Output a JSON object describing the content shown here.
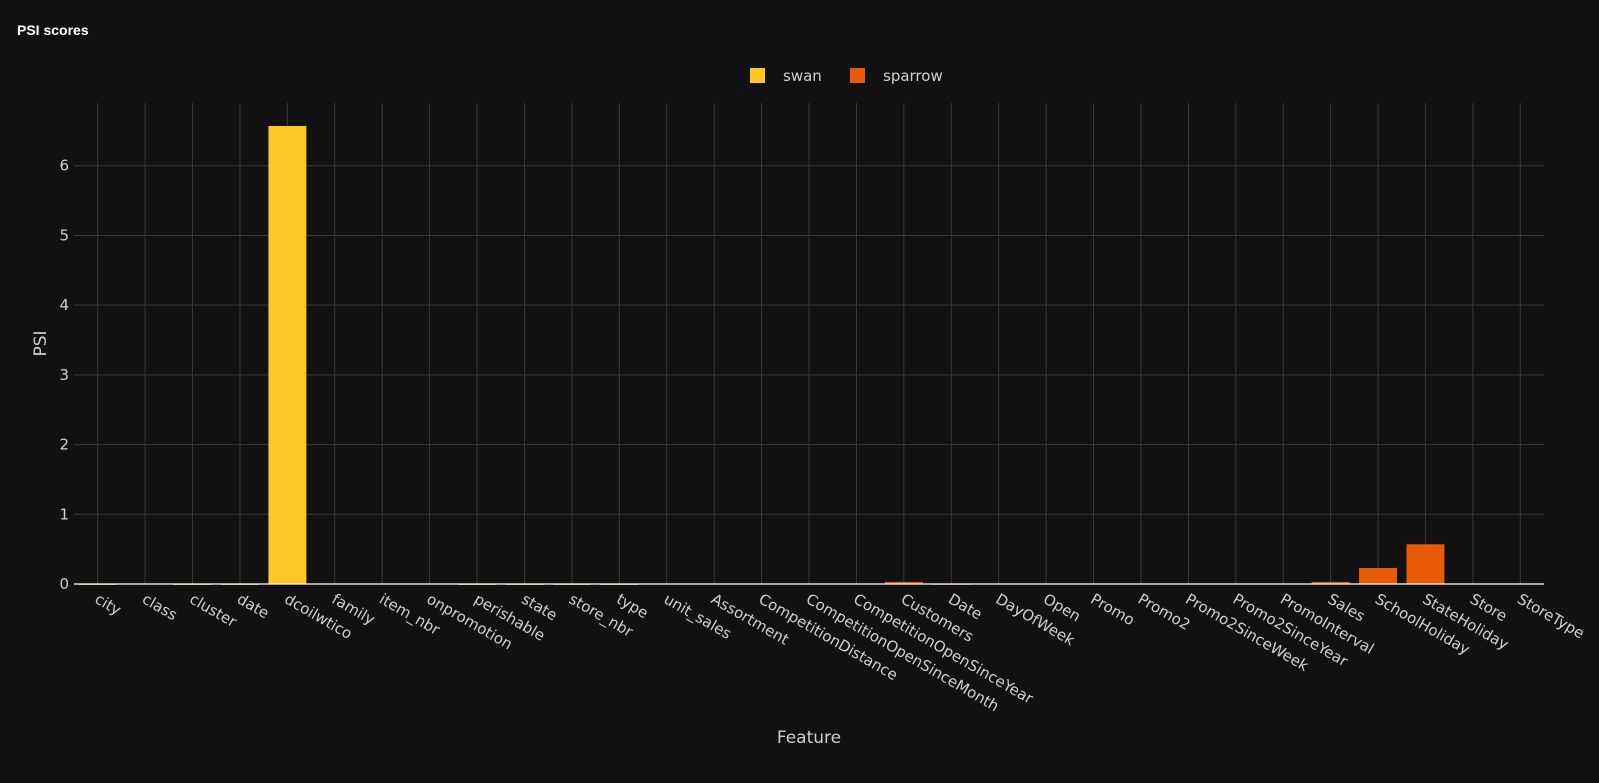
{
  "card": {
    "title": "PSI scores"
  },
  "colors": {
    "background": "#111111",
    "grid": "#3a3a3a",
    "axis_text": "#d0d0d0",
    "zero_line": "#ffffff"
  },
  "chart_data": {
    "type": "bar",
    "xlabel": "Feature",
    "ylabel": "PSI",
    "ylim": [
      0,
      6.9
    ],
    "yticks": [
      0,
      1,
      2,
      3,
      4,
      5,
      6
    ],
    "grid": true,
    "legend_position": "top-center",
    "categories": [
      "city",
      "class",
      "cluster",
      "date",
      "dcoilwtico",
      "family",
      "item_nbr",
      "onpromotion",
      "perishable",
      "state",
      "store_nbr",
      "type",
      "unit_sales",
      "Assortment",
      "CompetitionDistance",
      "CompetitionOpenSinceMonth",
      "CompetitionOpenSinceYear",
      "Customers",
      "Date",
      "DayOfWeek",
      "Open",
      "Promo",
      "Promo2",
      "Promo2SinceWeek",
      "Promo2SinceYear",
      "PromoInterval",
      "Sales",
      "SchoolHoliday",
      "StateHoliday",
      "Store",
      "StoreType"
    ],
    "series": [
      {
        "name": "swan",
        "color": "#ffc726",
        "values": [
          0.0,
          0.005,
          0.0,
          0.0,
          6.57,
          0.005,
          0.005,
          0.005,
          0.0,
          0.0,
          0.0,
          0.0,
          0.005,
          null,
          null,
          null,
          null,
          null,
          null,
          null,
          null,
          null,
          null,
          null,
          null,
          null,
          null,
          null,
          null,
          null,
          null
        ]
      },
      {
        "name": "sparrow",
        "color": "#e85a06",
        "values": [
          null,
          null,
          null,
          null,
          null,
          null,
          null,
          null,
          null,
          null,
          null,
          null,
          null,
          0.005,
          0.005,
          0.005,
          0.005,
          0.03,
          0.0,
          0.005,
          0.005,
          0.005,
          0.005,
          0.005,
          0.005,
          0.005,
          0.03,
          0.23,
          0.57,
          0.005,
          0.005
        ]
      }
    ]
  }
}
